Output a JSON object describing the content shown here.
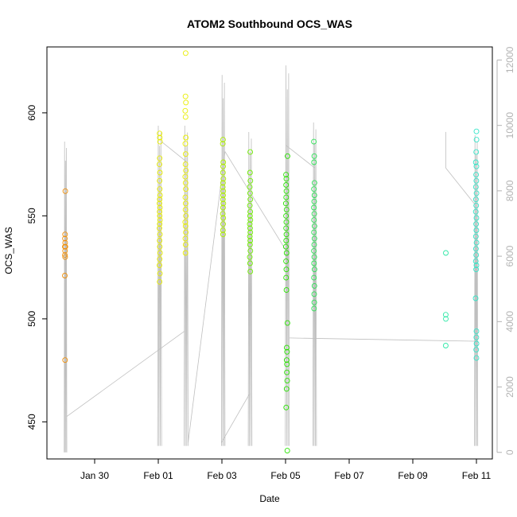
{
  "chart_data": {
    "type": "scatter",
    "title": "ATOM2 Southbound OCS_WAS",
    "xlabel": "Date",
    "ylabel": "OCS_WAS",
    "x_axis_type": "date",
    "xlim": [
      "2017-01-28T12:00",
      "2017-02-11T12:00"
    ],
    "ylim": [
      432,
      632
    ],
    "y2lim": [
      -200,
      12400
    ],
    "x_ticks": [
      {
        "date": "2017-01-30",
        "label": "Jan 30"
      },
      {
        "date": "2017-02-01",
        "label": "Feb 01"
      },
      {
        "date": "2017-02-03",
        "label": "Feb 03"
      },
      {
        "date": "2017-02-05",
        "label": "Feb 05"
      },
      {
        "date": "2017-02-07",
        "label": "Feb 07"
      },
      {
        "date": "2017-02-09",
        "label": "Feb 09"
      },
      {
        "date": "2017-02-11",
        "label": "Feb 11"
      }
    ],
    "y_ticks": [
      450,
      500,
      550,
      600
    ],
    "y2_ticks": [
      0,
      2000,
      4000,
      6000,
      8000,
      10000,
      12000
    ],
    "grid": false,
    "legend": "none",
    "colors": {
      "jan29": "#f0900a",
      "feb01": "#e9ee00",
      "feb03": "#aef000",
      "feb04": "#72f000",
      "feb05": "#28e300",
      "feb06": "#2de356",
      "feb10": "#2ee8a6",
      "feb11": "#34e5c8",
      "altitude": "#bfbfbf",
      "right_axis": "#b3b3b3"
    },
    "series": [
      {
        "color_key": "jan29",
        "points": [
          [
            "2017-01-29T01:50",
            562
          ],
          [
            "2017-01-29T01:40",
            541
          ],
          [
            "2017-01-29T01:35",
            539
          ],
          [
            "2017-01-29T01:45",
            537
          ],
          [
            "2017-01-29T01:30",
            535
          ],
          [
            "2017-01-29T01:55",
            535
          ],
          [
            "2017-01-29T01:40",
            533
          ],
          [
            "2017-01-29T01:35",
            531
          ],
          [
            "2017-01-29T01:45",
            530
          ],
          [
            "2017-01-29T01:30",
            521
          ],
          [
            "2017-01-29T01:40",
            480
          ]
        ]
      },
      {
        "color_key": "feb01",
        "points": [
          [
            "2017-02-01T01:00",
            590
          ],
          [
            "2017-02-01T01:10",
            588
          ],
          [
            "2017-02-01T01:20",
            586
          ],
          [
            "2017-02-01T01:05",
            578
          ],
          [
            "2017-02-01T00:55",
            575
          ],
          [
            "2017-02-01T01:15",
            571
          ],
          [
            "2017-02-01T01:00",
            567
          ],
          [
            "2017-02-01T01:10",
            563
          ],
          [
            "2017-02-01T01:20",
            560
          ],
          [
            "2017-02-01T01:05",
            558
          ],
          [
            "2017-02-01T00:55",
            556
          ],
          [
            "2017-02-01T01:15",
            554
          ],
          [
            "2017-02-01T01:00",
            552
          ],
          [
            "2017-02-01T01:10",
            550
          ],
          [
            "2017-02-01T01:20",
            548
          ],
          [
            "2017-02-01T01:05",
            546
          ],
          [
            "2017-02-01T00:55",
            544
          ],
          [
            "2017-02-01T01:15",
            541
          ],
          [
            "2017-02-01T01:00",
            538
          ],
          [
            "2017-02-01T01:10",
            535
          ],
          [
            "2017-02-01T01:20",
            532
          ],
          [
            "2017-02-01T01:05",
            529
          ],
          [
            "2017-02-01T00:55",
            526
          ],
          [
            "2017-02-01T01:15",
            522
          ],
          [
            "2017-02-01T01:00",
            518
          ],
          [
            "2017-02-01T20:40",
            629
          ],
          [
            "2017-02-01T20:30",
            608
          ],
          [
            "2017-02-01T20:50",
            605
          ],
          [
            "2017-02-01T20:20",
            601
          ],
          [
            "2017-02-01T20:35",
            598
          ],
          [
            "2017-02-01T20:45",
            588
          ],
          [
            "2017-02-01T20:25",
            585
          ],
          [
            "2017-02-01T20:40",
            580
          ],
          [
            "2017-02-01T20:30",
            575
          ],
          [
            "2017-02-01T20:50",
            572
          ],
          [
            "2017-02-01T20:20",
            569
          ],
          [
            "2017-02-01T20:35",
            566
          ],
          [
            "2017-02-01T20:45",
            563
          ],
          [
            "2017-02-01T20:25",
            559
          ],
          [
            "2017-02-01T20:40",
            556
          ],
          [
            "2017-02-01T20:30",
            553
          ],
          [
            "2017-02-01T20:50",
            550
          ],
          [
            "2017-02-01T20:20",
            547
          ],
          [
            "2017-02-01T20:35",
            545
          ],
          [
            "2017-02-01T20:45",
            542
          ],
          [
            "2017-02-01T20:25",
            539
          ],
          [
            "2017-02-01T20:40",
            536
          ],
          [
            "2017-02-01T20:30",
            532
          ]
        ]
      },
      {
        "color_key": "feb03",
        "points": [
          [
            "2017-02-03T00:50",
            587
          ],
          [
            "2017-02-03T00:40",
            585
          ],
          [
            "2017-02-03T01:00",
            576
          ],
          [
            "2017-02-03T00:55",
            574
          ],
          [
            "2017-02-03T00:45",
            571
          ],
          [
            "2017-02-03T01:05",
            568
          ],
          [
            "2017-02-03T00:50",
            566
          ],
          [
            "2017-02-03T00:40",
            564
          ],
          [
            "2017-02-03T01:00",
            562
          ],
          [
            "2017-02-03T00:55",
            560
          ],
          [
            "2017-02-03T00:45",
            558
          ],
          [
            "2017-02-03T01:05",
            556
          ],
          [
            "2017-02-03T00:50",
            554
          ],
          [
            "2017-02-03T00:40",
            551
          ],
          [
            "2017-02-03T01:00",
            549
          ],
          [
            "2017-02-03T00:55",
            546
          ],
          [
            "2017-02-03T00:45",
            543
          ],
          [
            "2017-02-03T00:50",
            541
          ]
        ]
      },
      {
        "color_key": "feb04",
        "points": [
          [
            "2017-02-03T21:20",
            581
          ],
          [
            "2017-02-03T21:10",
            571
          ],
          [
            "2017-02-03T21:30",
            567
          ],
          [
            "2017-02-03T21:00",
            564
          ],
          [
            "2017-02-03T21:15",
            561
          ],
          [
            "2017-02-03T21:25",
            558
          ],
          [
            "2017-02-03T21:05",
            555
          ],
          [
            "2017-02-03T21:20",
            552
          ],
          [
            "2017-02-03T21:10",
            550
          ],
          [
            "2017-02-03T21:30",
            548
          ],
          [
            "2017-02-03T21:00",
            546
          ],
          [
            "2017-02-03T21:15",
            544
          ],
          [
            "2017-02-03T21:25",
            542
          ],
          [
            "2017-02-03T21:05",
            540
          ],
          [
            "2017-02-03T21:20",
            538
          ],
          [
            "2017-02-03T21:10",
            536
          ],
          [
            "2017-02-03T21:30",
            533
          ],
          [
            "2017-02-03T21:00",
            530
          ],
          [
            "2017-02-03T21:15",
            527
          ],
          [
            "2017-02-03T21:25",
            523
          ]
        ]
      },
      {
        "color_key": "feb05",
        "points": [
          [
            "2017-02-05T01:30",
            579
          ],
          [
            "2017-02-05T00:20",
            570
          ],
          [
            "2017-02-05T00:35",
            568
          ],
          [
            "2017-02-05T00:25",
            565
          ],
          [
            "2017-02-05T00:40",
            562
          ],
          [
            "2017-02-05T00:30",
            559
          ],
          [
            "2017-02-05T00:15",
            556
          ],
          [
            "2017-02-05T00:45",
            553
          ],
          [
            "2017-02-05T00:20",
            550
          ],
          [
            "2017-02-05T00:35",
            547
          ],
          [
            "2017-02-05T00:25",
            544
          ],
          [
            "2017-02-05T00:40",
            541
          ],
          [
            "2017-02-05T00:30",
            538
          ],
          [
            "2017-02-05T00:15",
            535
          ],
          [
            "2017-02-05T00:45",
            532
          ],
          [
            "2017-02-05T00:20",
            528
          ],
          [
            "2017-02-05T00:35",
            524
          ],
          [
            "2017-02-05T00:25",
            520
          ],
          [
            "2017-02-05T00:40",
            514
          ],
          [
            "2017-02-05T01:25",
            498
          ],
          [
            "2017-02-05T00:55",
            486
          ],
          [
            "2017-02-05T01:10",
            484
          ],
          [
            "2017-02-05T00:50",
            480
          ],
          [
            "2017-02-05T01:05",
            478
          ],
          [
            "2017-02-05T01:00",
            474
          ],
          [
            "2017-02-05T01:15",
            470
          ],
          [
            "2017-02-05T00:45",
            466
          ],
          [
            "2017-02-05T00:30",
            457
          ],
          [
            "2017-02-05T01:20",
            436
          ]
        ]
      },
      {
        "color_key": "feb06",
        "points": [
          [
            "2017-02-05T21:20",
            586
          ],
          [
            "2017-02-05T21:40",
            579
          ],
          [
            "2017-02-05T21:30",
            576
          ],
          [
            "2017-02-05T21:50",
            566
          ],
          [
            "2017-02-05T21:25",
            563
          ],
          [
            "2017-02-05T21:45",
            560
          ],
          [
            "2017-02-05T21:35",
            557
          ],
          [
            "2017-02-05T21:20",
            554
          ],
          [
            "2017-02-05T21:40",
            551
          ],
          [
            "2017-02-05T21:30",
            548
          ],
          [
            "2017-02-05T21:50",
            545
          ],
          [
            "2017-02-05T21:25",
            542
          ],
          [
            "2017-02-05T21:45",
            539
          ],
          [
            "2017-02-05T21:35",
            536
          ],
          [
            "2017-02-05T21:20",
            533
          ],
          [
            "2017-02-05T21:40",
            530
          ],
          [
            "2017-02-05T21:30",
            527
          ],
          [
            "2017-02-05T21:50",
            524
          ],
          [
            "2017-02-05T21:25",
            520
          ],
          [
            "2017-02-05T21:45",
            516
          ],
          [
            "2017-02-05T21:35",
            512
          ],
          [
            "2017-02-05T21:40",
            508
          ],
          [
            "2017-02-05T21:30",
            505
          ]
        ]
      },
      {
        "color_key": "feb10",
        "points": [
          [
            "2017-02-10T00:55",
            532
          ],
          [
            "2017-02-10T00:50",
            502
          ],
          [
            "2017-02-10T00:55",
            500
          ],
          [
            "2017-02-10T00:50",
            487
          ]
        ]
      },
      {
        "color_key": "feb11",
        "points": [
          [
            "2017-02-11T00:00",
            591
          ],
          [
            "2017-02-11T00:05",
            587
          ],
          [
            "2017-02-10T23:50",
            581
          ],
          [
            "2017-02-10T23:30",
            576
          ],
          [
            "2017-02-11T00:00",
            574
          ],
          [
            "2017-02-10T23:45",
            570
          ],
          [
            "2017-02-10T23:55",
            567
          ],
          [
            "2017-02-10T23:35",
            564
          ],
          [
            "2017-02-11T00:05",
            561
          ],
          [
            "2017-02-10T23:40",
            558
          ],
          [
            "2017-02-10T23:50",
            555
          ],
          [
            "2017-02-10T23:30",
            552
          ],
          [
            "2017-02-11T00:00",
            549
          ],
          [
            "2017-02-10T23:45",
            546
          ],
          [
            "2017-02-10T23:55",
            543
          ],
          [
            "2017-02-10T23:35",
            540
          ],
          [
            "2017-02-11T00:05",
            537
          ],
          [
            "2017-02-10T23:40",
            534
          ],
          [
            "2017-02-10T23:50",
            531
          ],
          [
            "2017-02-10T23:30",
            528
          ],
          [
            "2017-02-11T00:00",
            526
          ],
          [
            "2017-02-10T23:45",
            524
          ],
          [
            "2017-02-10T23:25",
            510
          ],
          [
            "2017-02-11T00:00",
            494
          ],
          [
            "2017-02-10T23:55",
            491
          ],
          [
            "2017-02-11T00:05",
            488
          ],
          [
            "2017-02-10T23:50",
            485
          ],
          [
            "2017-02-11T00:00",
            481
          ]
        ]
      }
    ],
    "altitude_trace": {
      "color_key": "altitude",
      "axis": "right",
      "flights": [
        {
          "start": "2017-01-29T01:00",
          "end": "2017-01-29T03:00",
          "min": 0,
          "max": 9800
        },
        {
          "start": "2017-01-31T23:30",
          "end": "2017-02-01T02:30",
          "min": 200,
          "max": 10300
        },
        {
          "start": "2017-02-01T19:30",
          "end": "2017-02-01T22:30",
          "min": 200,
          "max": 10300
        },
        {
          "start": "2017-02-02T23:40",
          "end": "2017-02-03T02:20",
          "min": 200,
          "max": 11900
        },
        {
          "start": "2017-02-03T19:50",
          "end": "2017-02-03T22:40",
          "min": 200,
          "max": 10100
        },
        {
          "start": "2017-02-04T23:50",
          "end": "2017-02-05T02:50",
          "min": 200,
          "max": 12200
        },
        {
          "start": "2017-02-05T20:40",
          "end": "2017-02-05T23:20",
          "min": 200,
          "max": 10400
        },
        {
          "start": "2017-02-10T22:30",
          "end": "2017-02-11T01:00",
          "min": 200,
          "max": 10000
        }
      ],
      "connectors": [
        [
          [
            "2017-01-29T03:00",
            1100
          ],
          [
            "2017-02-01T19:30",
            3700
          ]
        ],
        [
          [
            "2017-02-01T02:30",
            9500
          ],
          [
            "2017-02-01T21:00",
            8900
          ]
        ],
        [
          [
            "2017-02-01T22:30",
            300
          ],
          [
            "2017-02-03T02:20",
            9200
          ]
        ],
        [
          [
            "2017-02-02T23:40",
            300
          ],
          [
            "2017-02-03T21:00",
            1800
          ]
        ],
        [
          [
            "2017-02-03T02:20",
            9200
          ],
          [
            "2017-02-05T00:00",
            6200
          ]
        ],
        [
          [
            "2017-02-05T00:00",
            9400
          ],
          [
            "2017-02-05T22:00",
            8700
          ]
        ],
        [
          [
            "2017-02-05T02:50",
            3500
          ],
          [
            "2017-02-10T22:30",
            3400
          ]
        ],
        [
          [
            "2017-02-10T00:50",
            9800
          ],
          [
            "2017-02-10T00:50",
            8700
          ]
        ],
        [
          [
            "2017-02-10T00:50",
            8700
          ],
          [
            "2017-02-10T22:30",
            7600
          ]
        ]
      ]
    }
  }
}
